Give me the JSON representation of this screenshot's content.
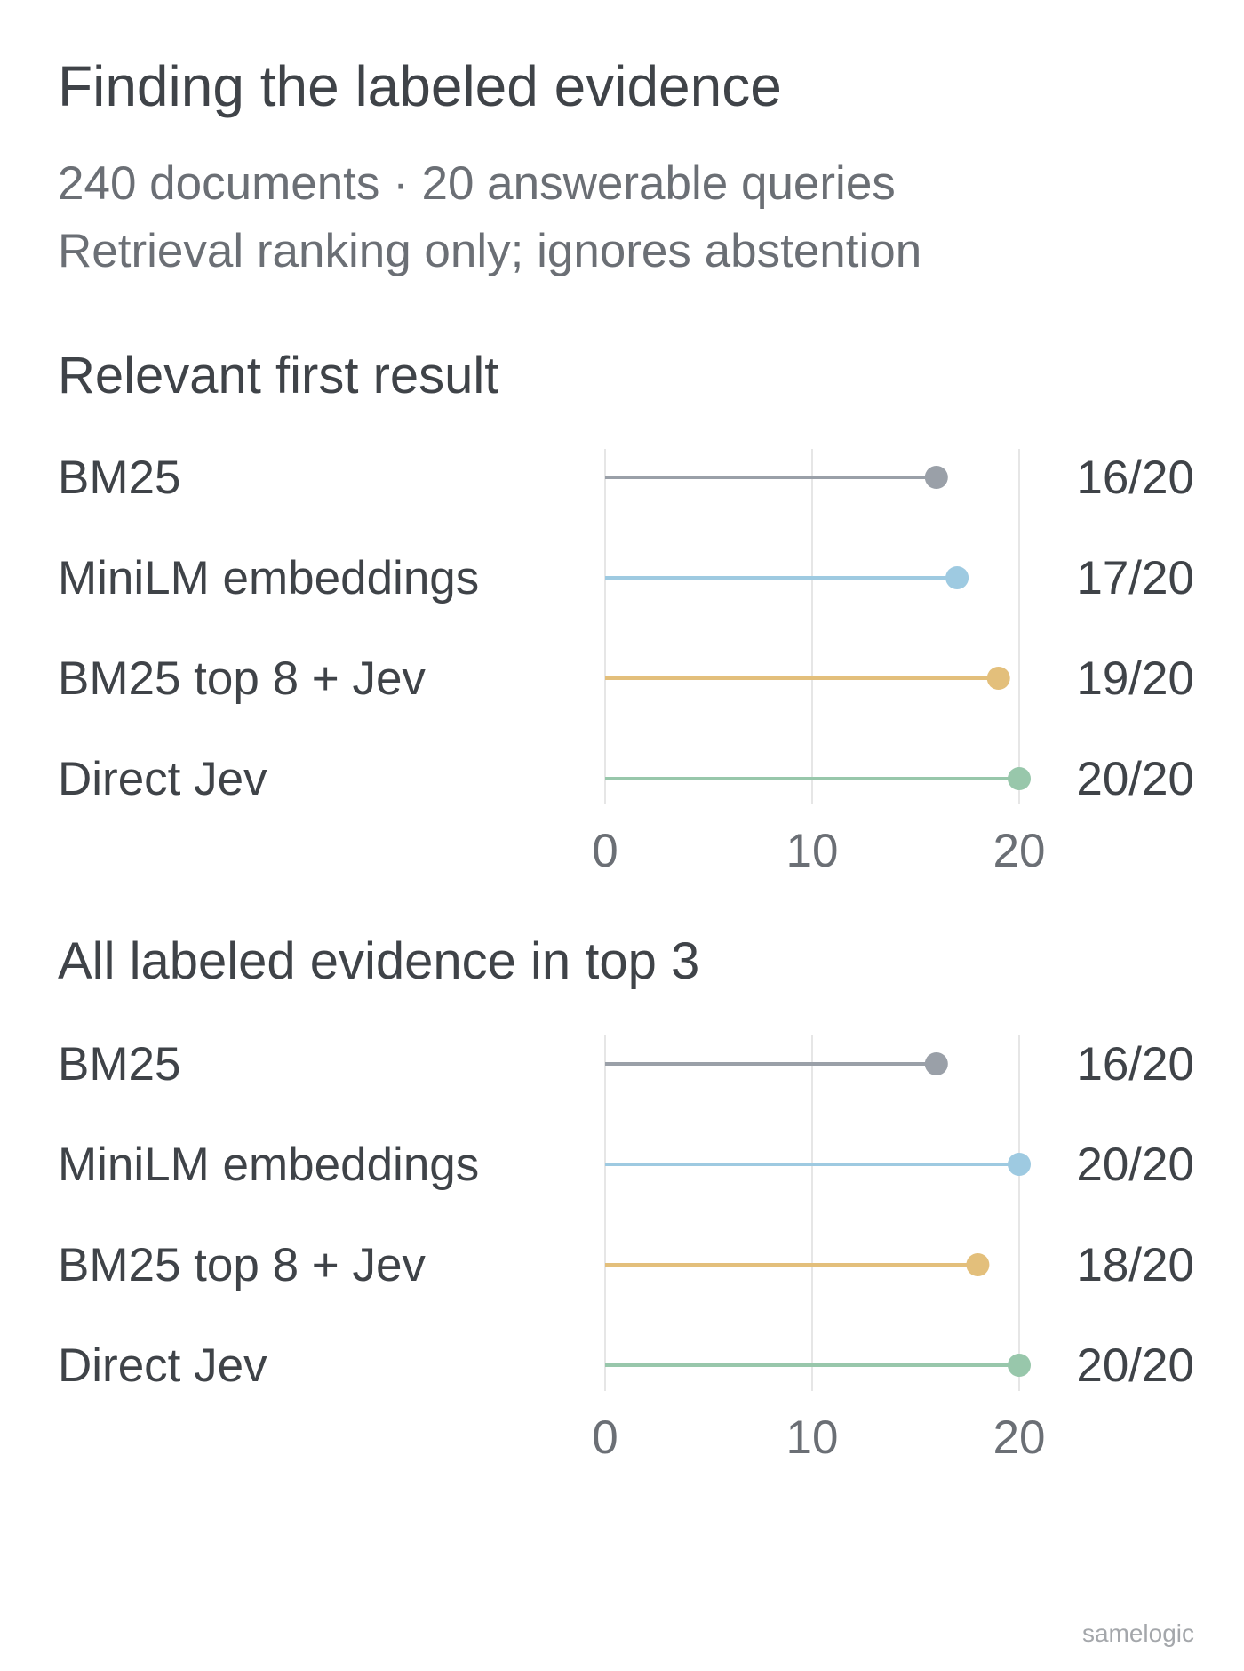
{
  "header": {
    "title": "Finding the labeled evidence",
    "subtitle_line1": "240 documents · 20 answerable queries",
    "subtitle_line2": "Retrieval ranking only; ignores abstention"
  },
  "footer": {
    "brand": "samelogic"
  },
  "colors": {
    "BM25": "#9aa0a8",
    "MiniLM embeddings": "#9ecae1",
    "BM25 top 8 + Jev": "#e3bf7b",
    "Direct Jev": "#98c7ab",
    "gridline": "#e6e6e6",
    "text": "#3f4348",
    "muted": "#6b6f75"
  },
  "chart_data": [
    {
      "type": "lollipop",
      "title": "Relevant first result",
      "categories": [
        "BM25",
        "MiniLM embeddings",
        "BM25 top 8 + Jev",
        "Direct Jev"
      ],
      "values": [
        16,
        17,
        19,
        20
      ],
      "value_labels": [
        "16/20",
        "17/20",
        "19/20",
        "20/20"
      ],
      "xlim": [
        0,
        20
      ],
      "xticks": [
        0,
        10,
        20
      ],
      "xtick_labels": [
        "0",
        "10",
        "20"
      ],
      "grid": true
    },
    {
      "type": "lollipop",
      "title": "All labeled evidence in top 3",
      "categories": [
        "BM25",
        "MiniLM embeddings",
        "BM25 top 8 + Jev",
        "Direct Jev"
      ],
      "values": [
        16,
        20,
        18,
        20
      ],
      "value_labels": [
        "16/20",
        "20/20",
        "18/20",
        "20/20"
      ],
      "xlim": [
        0,
        20
      ],
      "xticks": [
        0,
        10,
        20
      ],
      "xtick_labels": [
        "0",
        "10",
        "20"
      ],
      "grid": true
    }
  ]
}
